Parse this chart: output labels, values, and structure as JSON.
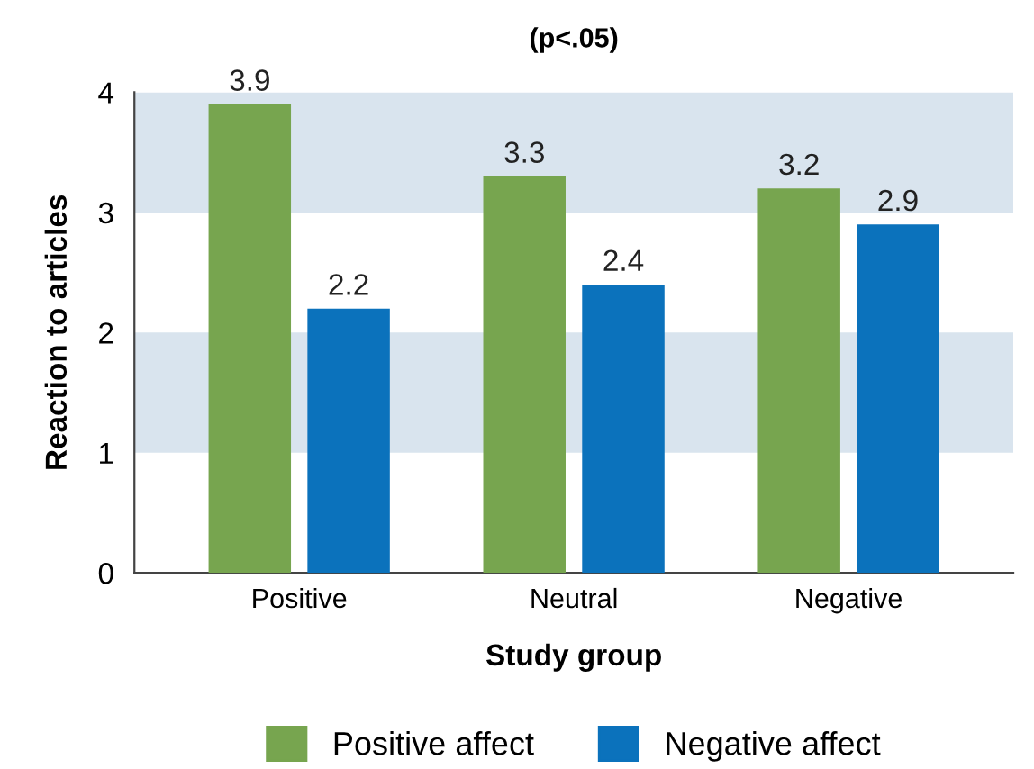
{
  "chart_data": {
    "type": "bar",
    "title": "(p<.05)",
    "xlabel": "Study group",
    "ylabel": "Reaction to articles",
    "categories": [
      "Positive",
      "Neutral",
      "Negative"
    ],
    "series": [
      {
        "name": "Positive affect",
        "color": "#77a54f",
        "values": [
          3.9,
          3.3,
          3.2
        ]
      },
      {
        "name": "Negative affect",
        "color": "#0b72bc",
        "values": [
          2.2,
          2.4,
          2.9
        ]
      }
    ],
    "ylim": [
      0,
      4
    ],
    "yticks": [
      0,
      1,
      2,
      3,
      4
    ],
    "bands": [
      {
        "axis": "y",
        "from": 1,
        "to": 2,
        "color": "#d9e4ee"
      },
      {
        "axis": "y",
        "from": 3,
        "to": 4,
        "color": "#d9e4ee"
      }
    ],
    "data_labels": true,
    "legend": "bottom",
    "grid": false
  }
}
